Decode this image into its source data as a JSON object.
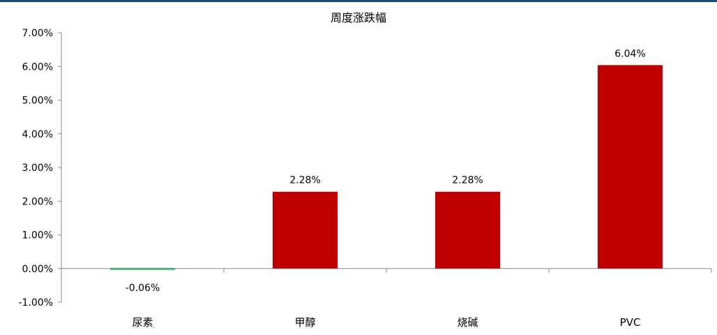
{
  "chart_data": {
    "type": "bar",
    "title": "周度涨跌幅",
    "xlabel": "",
    "ylabel": "",
    "categories": [
      "尿素",
      "甲醇",
      "烧碱",
      "PVC"
    ],
    "values": [
      -0.06,
      2.28,
      2.28,
      6.04
    ],
    "value_labels": [
      "-0.06%",
      "2.28%",
      "2.28%",
      "6.04%"
    ],
    "ylim": [
      -1.0,
      7.0
    ],
    "yticks": [
      7.0,
      6.0,
      5.0,
      4.0,
      3.0,
      2.0,
      1.0,
      0.0,
      -1.0
    ],
    "ytick_labels": [
      "7.00%",
      "6.00%",
      "5.00%",
      "4.00%",
      "3.00%",
      "2.00%",
      "1.00%",
      "0.00%",
      "-1.00%"
    ],
    "grid": false,
    "legend": "none",
    "colors": {
      "positive": "#c00000",
      "negative": "#4caf7a",
      "axis": "#888888"
    }
  }
}
